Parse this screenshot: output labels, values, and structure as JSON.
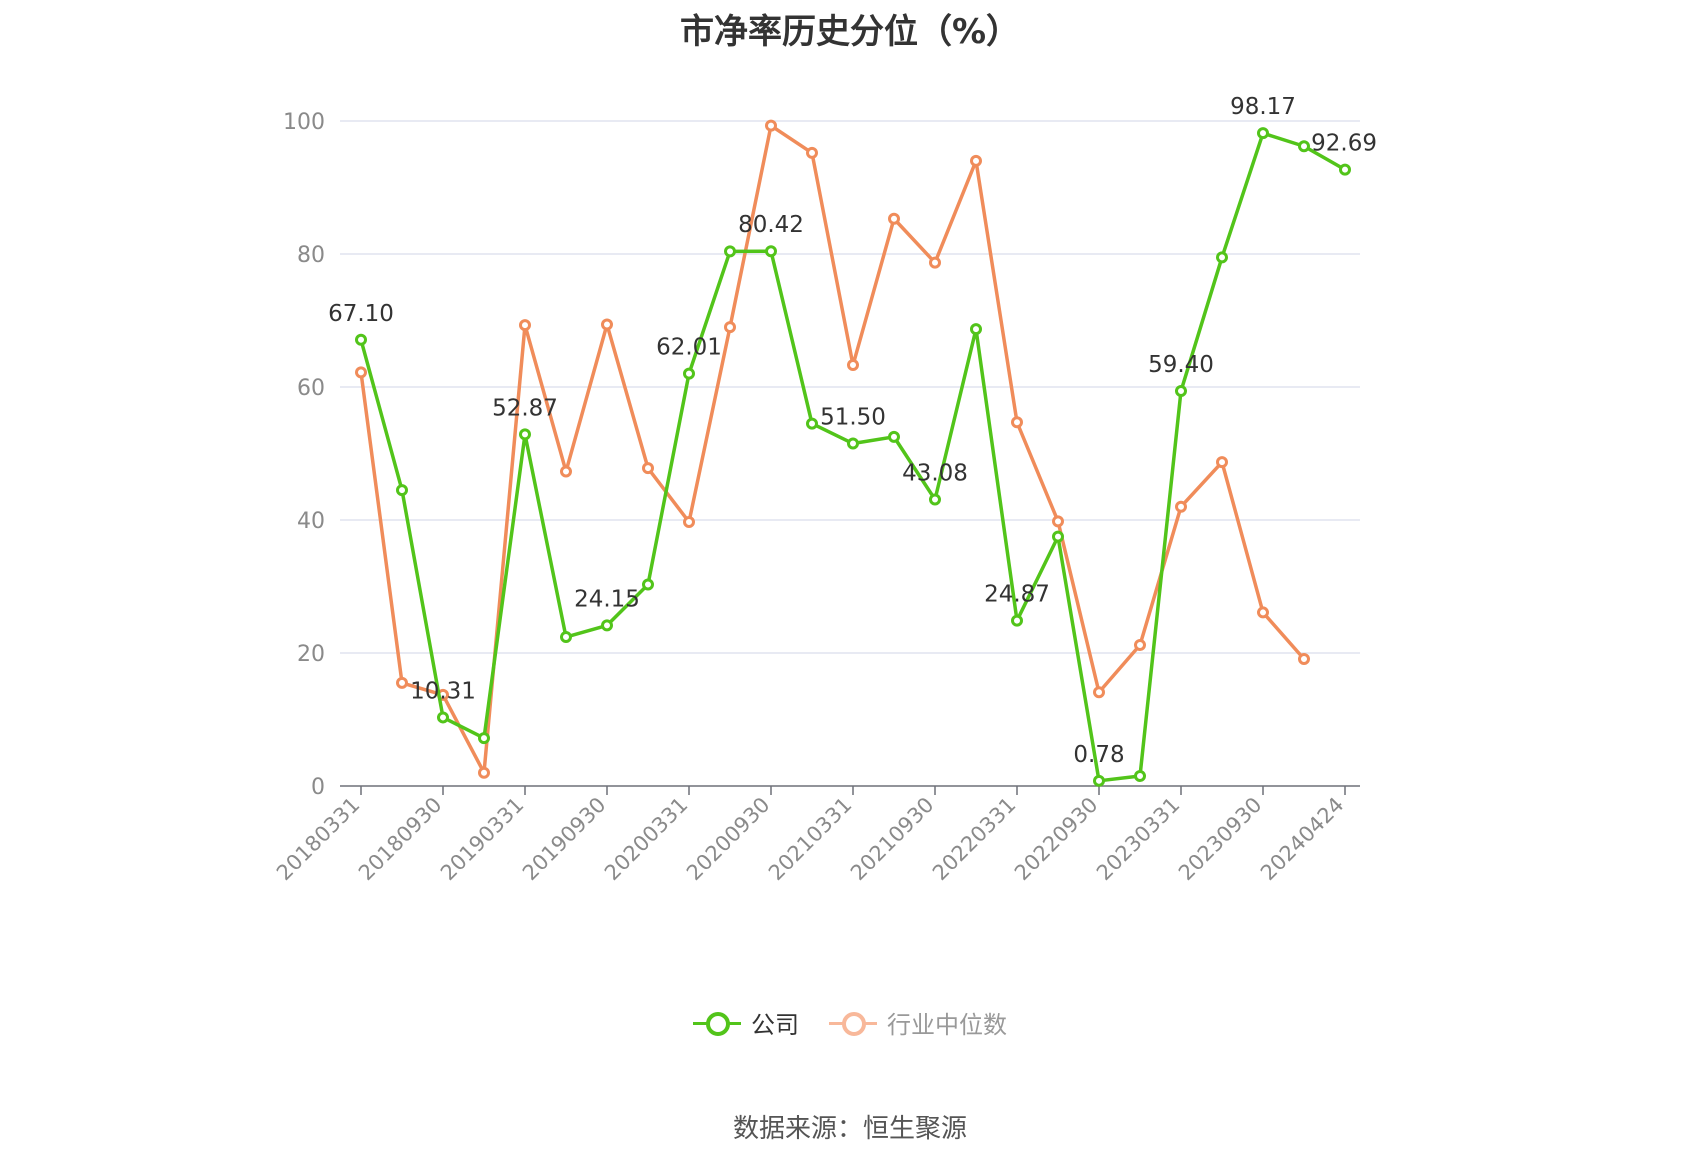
{
  "title": "市净率历史分位（%）",
  "source": "数据来源：恒生聚源",
  "colors": {
    "company": "#52c41a",
    "industry": "#f08c5a",
    "industry_legend": "#f8b89a",
    "grid": "#e0e3ef",
    "axis": "#6e7079"
  },
  "chart_data": {
    "type": "line",
    "title": "市净率历史分位（%）",
    "xlabel": "",
    "ylabel": "",
    "ylim": [
      0,
      100
    ],
    "yticks": [
      0,
      20,
      40,
      60,
      80,
      100
    ],
    "grid": true,
    "legend_position": "bottom",
    "x_tick_labels": [
      "20180331",
      "20180930",
      "20190331",
      "20190930",
      "20200331",
      "20200930",
      "20210331",
      "20210930",
      "20220331",
      "20220930",
      "20230331",
      "20230930",
      "20240424"
    ],
    "x": [
      "20180331",
      "20180630",
      "20180930",
      "20181231",
      "20190331",
      "20190630",
      "20190930",
      "20191231",
      "20200331",
      "20200630",
      "20200930",
      "20201231",
      "20210331",
      "20210630",
      "20210930",
      "20211231",
      "20220331",
      "20220630",
      "20220930",
      "20221231",
      "20230331",
      "20230630",
      "20230930",
      "20231231",
      "20240424"
    ],
    "series": [
      {
        "name": "公司",
        "values": [
          67.1,
          44.5,
          10.31,
          7.2,
          52.87,
          22.4,
          24.15,
          30.3,
          62.01,
          80.4,
          80.42,
          54.5,
          51.5,
          52.5,
          43.08,
          68.7,
          24.87,
          37.5,
          0.78,
          1.5,
          59.4,
          79.5,
          98.17,
          96.2,
          92.69
        ],
        "labels": [
          "67.10",
          "",
          "10.31",
          "",
          "52.87",
          "",
          "24.15",
          "",
          "62.01",
          "",
          "80.42",
          "",
          "51.50",
          "",
          "43.08",
          "",
          "24.87",
          "",
          "0.78",
          "",
          "59.40",
          "",
          "98.17",
          "",
          "92.69"
        ]
      },
      {
        "name": "行业中位数",
        "values": [
          62.2,
          15.5,
          13.7,
          2.0,
          69.3,
          47.3,
          69.4,
          47.8,
          39.7,
          69.0,
          99.3,
          95.2,
          63.3,
          85.3,
          78.7,
          94.0,
          54.7,
          39.8,
          14.1,
          21.2,
          42.0,
          48.7,
          26.1,
          19.1,
          null
        ]
      }
    ]
  }
}
